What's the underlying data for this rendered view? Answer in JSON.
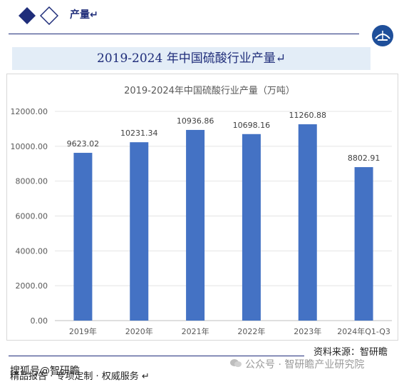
{
  "header": {
    "section_title": "产量↵"
  },
  "banner": {
    "title": "2019-2024 年中国硫酸行业产量↵"
  },
  "chart_data": {
    "type": "bar",
    "title": "2019-2024年中国硫酸行业产量（万吨）",
    "categories": [
      "2019年",
      "2020年",
      "2021年",
      "2022年",
      "2023年",
      "2024年Q1-Q3"
    ],
    "values": [
      9623.02,
      10231.34,
      10936.86,
      10698.16,
      11260.88,
      8802.91
    ],
    "data_labels": [
      "9623.02",
      "10231.34",
      "10936.86",
      "10698.16",
      "11260.88",
      "8802.91"
    ],
    "ylim": [
      0,
      12000
    ],
    "yticks": [
      0,
      2000,
      4000,
      6000,
      8000,
      10000,
      12000
    ],
    "ytick_labels": [
      "0.00",
      "2000.00",
      "4000.00",
      "6000.00",
      "8000.00",
      "10000.00",
      "12000.00"
    ],
    "xlabel": "",
    "ylabel": "",
    "grid": true,
    "bar_color": "#4472c4"
  },
  "footer": {
    "source": "资料来源：智研瞻",
    "services": "精品报告 · 专项定制 · 权威服务 ↵",
    "overlay_text": "搜狐号@智研瞻",
    "watermark": "公众号 · 智研瞻产业研究院"
  },
  "colors": {
    "brand": "#1f2d7a",
    "bar": "#4472c4",
    "banner_bg": "#e3edf7"
  }
}
